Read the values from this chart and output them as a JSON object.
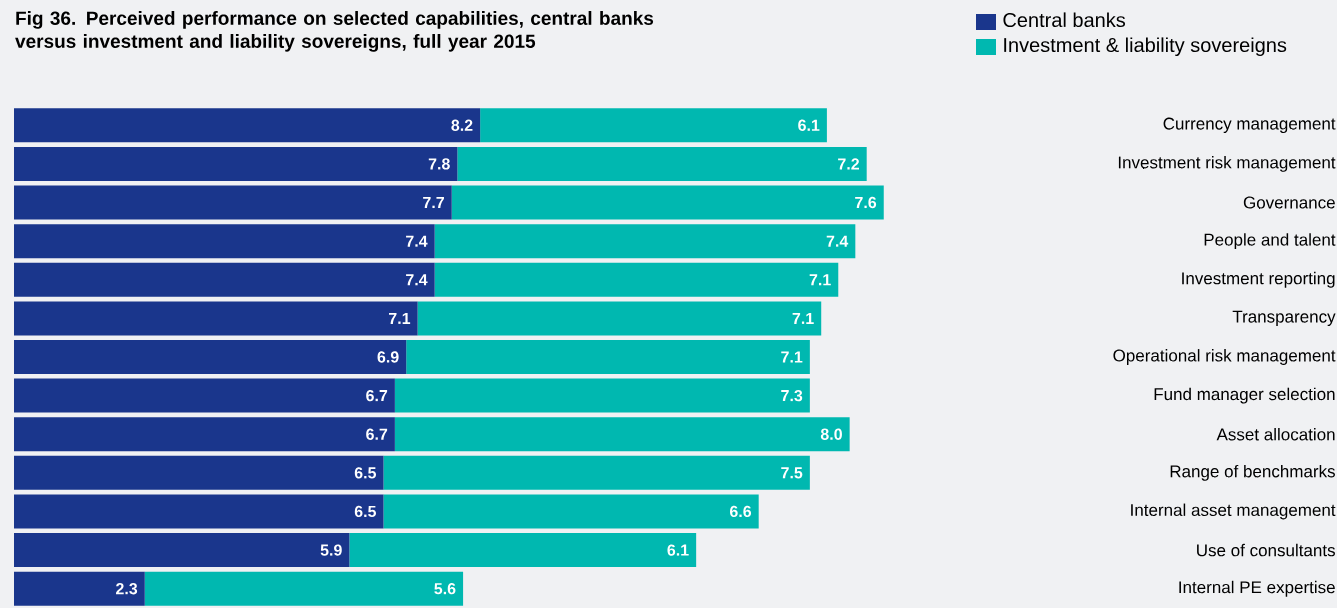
{
  "chart_data": {
    "type": "bar",
    "orientation": "horizontal",
    "stacked": true,
    "legend": "top right",
    "title": "**Fig 36. Perceived performance on selected capabilities, central banks versus investment and liability sovereigns, full year 2015**",
    "categories": [
      "Currency management",
      "Investment risk management",
      "Governance",
      "People and talent",
      "Investment reporting",
      "Transparency",
      "Operational risk management",
      "Fund manager selection",
      "Asset allocation",
      "Range of benchmarks",
      "Internal asset management",
      "Use of consultants",
      "Internal PE expertise"
    ],
    "series": [
      {
        "name": "Central banks",
        "color": "#1a368c",
        "values": [
          8.2,
          7.8,
          7.7,
          7.4,
          7.4,
          7.1,
          6.9,
          6.7,
          6.7,
          6.5,
          6.5,
          5.9,
          2.3
        ],
        "value_labels": [
          "8.2",
          "7.8",
          "7.7",
          "7.4",
          "7.4",
          "7.1",
          "6.9",
          "6.7",
          "6.7",
          "6.5",
          "6.5",
          "5.9",
          "2.3"
        ]
      },
      {
        "name": "Investment & liability sovereigns",
        "color": "#00b8b0",
        "values": [
          6.1,
          7.2,
          7.6,
          7.4,
          7.1,
          7.1,
          7.1,
          7.3,
          8.0,
          7.5,
          6.6,
          6.1,
          5.6
        ],
        "value_labels": [
          "6.1",
          "7.2",
          "7.6",
          "7.4",
          "7.1",
          "7.1",
          "7.1",
          "7.3",
          "8.0",
          "7.5",
          "6.6",
          "6.1",
          "5.6"
        ]
      }
    ]
  }
}
